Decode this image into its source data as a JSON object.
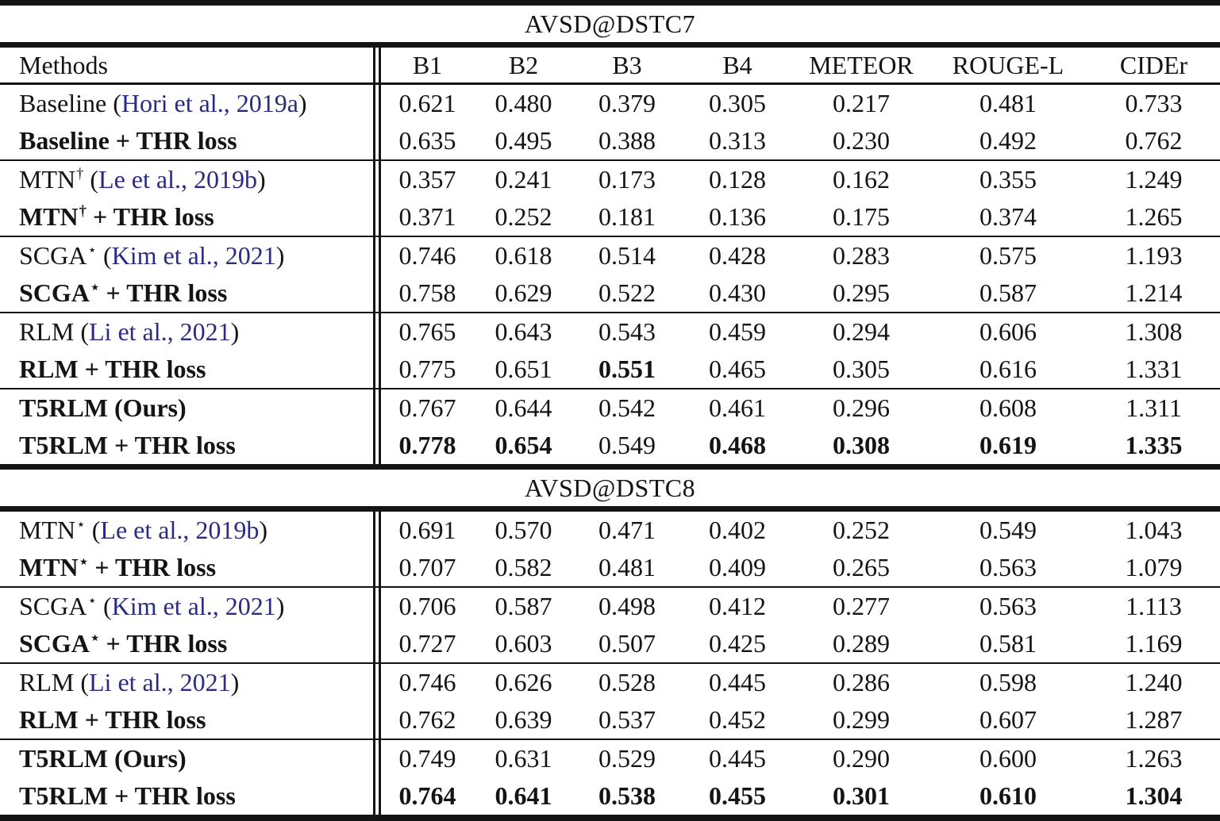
{
  "colors": {
    "citation_text": "#2b2b80",
    "body_text": "#141414",
    "rule": "#141414",
    "background": "#ffffff"
  },
  "table": {
    "header": {
      "methods_label": "Methods",
      "metrics": [
        "B1",
        "B2",
        "B3",
        "B4",
        "METEOR",
        "ROUGE-L",
        "CIDEr"
      ]
    },
    "sections": [
      {
        "title": "AVSD@DSTC7",
        "groups": [
          {
            "rows": [
              {
                "pre": "Baseline",
                "sup": "",
                "post": "",
                "cite": "Hori et al., 2019a",
                "bold": false,
                "values": [
                  "0.621",
                  "0.480",
                  "0.379",
                  "0.305",
                  "0.217",
                  "0.481",
                  "0.733"
                ],
                "vbold": [
                  false,
                  false,
                  false,
                  false,
                  false,
                  false,
                  false
                ]
              },
              {
                "pre": "Baseline",
                "sup": "",
                "post": " + THR loss",
                "cite": null,
                "bold": true,
                "values": [
                  "0.635",
                  "0.495",
                  "0.388",
                  "0.313",
                  "0.230",
                  "0.492",
                  "0.762"
                ],
                "vbold": [
                  false,
                  false,
                  false,
                  false,
                  false,
                  false,
                  false
                ]
              }
            ]
          },
          {
            "rows": [
              {
                "pre": "MTN",
                "sup": "†",
                "post": "",
                "cite": "Le et al., 2019b",
                "bold": false,
                "values": [
                  "0.357",
                  "0.241",
                  "0.173",
                  "0.128",
                  "0.162",
                  "0.355",
                  "1.249"
                ],
                "vbold": [
                  false,
                  false,
                  false,
                  false,
                  false,
                  false,
                  false
                ]
              },
              {
                "pre": "MTN",
                "sup": "†",
                "post": " + THR loss",
                "cite": null,
                "bold": true,
                "values": [
                  "0.371",
                  "0.252",
                  "0.181",
                  "0.136",
                  "0.175",
                  "0.374",
                  "1.265"
                ],
                "vbold": [
                  false,
                  false,
                  false,
                  false,
                  false,
                  false,
                  false
                ]
              }
            ]
          },
          {
            "rows": [
              {
                "pre": "SCGA",
                "sup": "⋆",
                "post": "",
                "cite": "Kim et al., 2021",
                "bold": false,
                "values": [
                  "0.746",
                  "0.618",
                  "0.514",
                  "0.428",
                  "0.283",
                  "0.575",
                  "1.193"
                ],
                "vbold": [
                  false,
                  false,
                  false,
                  false,
                  false,
                  false,
                  false
                ]
              },
              {
                "pre": "SCGA",
                "sup": "⋆",
                "post": " + THR loss",
                "cite": null,
                "bold": true,
                "values": [
                  "0.758",
                  "0.629",
                  "0.522",
                  "0.430",
                  "0.295",
                  "0.587",
                  "1.214"
                ],
                "vbold": [
                  false,
                  false,
                  false,
                  false,
                  false,
                  false,
                  false
                ]
              }
            ]
          },
          {
            "rows": [
              {
                "pre": "RLM",
                "sup": "",
                "post": "",
                "cite": "Li et al., 2021",
                "bold": false,
                "values": [
                  "0.765",
                  "0.643",
                  "0.543",
                  "0.459",
                  "0.294",
                  "0.606",
                  "1.308"
                ],
                "vbold": [
                  false,
                  false,
                  false,
                  false,
                  false,
                  false,
                  false
                ]
              },
              {
                "pre": "RLM",
                "sup": "",
                "post": " + THR loss",
                "cite": null,
                "bold": true,
                "values": [
                  "0.775",
                  "0.651",
                  "0.551",
                  "0.465",
                  "0.305",
                  "0.616",
                  "1.331"
                ],
                "vbold": [
                  false,
                  false,
                  true,
                  false,
                  false,
                  false,
                  false
                ]
              }
            ]
          },
          {
            "rows": [
              {
                "pre": "T5RLM",
                "sup": "",
                "post": " (Ours)",
                "cite": null,
                "bold": true,
                "values": [
                  "0.767",
                  "0.644",
                  "0.542",
                  "0.461",
                  "0.296",
                  "0.608",
                  "1.311"
                ],
                "vbold": [
                  false,
                  false,
                  false,
                  false,
                  false,
                  false,
                  false
                ]
              },
              {
                "pre": "T5RLM",
                "sup": "",
                "post": " + THR loss",
                "cite": null,
                "bold": true,
                "values": [
                  "0.778",
                  "0.654",
                  "0.549",
                  "0.468",
                  "0.308",
                  "0.619",
                  "1.335"
                ],
                "vbold": [
                  true,
                  true,
                  false,
                  true,
                  true,
                  true,
                  true
                ]
              }
            ]
          }
        ]
      },
      {
        "title": "AVSD@DSTC8",
        "groups": [
          {
            "rows": [
              {
                "pre": "MTN",
                "sup": "⋆",
                "post": "",
                "cite": "Le et al., 2019b",
                "bold": false,
                "values": [
                  "0.691",
                  "0.570",
                  "0.471",
                  "0.402",
                  "0.252",
                  "0.549",
                  "1.043"
                ],
                "vbold": [
                  false,
                  false,
                  false,
                  false,
                  false,
                  false,
                  false
                ]
              },
              {
                "pre": "MTN",
                "sup": "⋆",
                "post": " + THR loss",
                "cite": null,
                "bold": true,
                "values": [
                  "0.707",
                  "0.582",
                  "0.481",
                  "0.409",
                  "0.265",
                  "0.563",
                  "1.079"
                ],
                "vbold": [
                  false,
                  false,
                  false,
                  false,
                  false,
                  false,
                  false
                ]
              }
            ]
          },
          {
            "rows": [
              {
                "pre": "SCGA",
                "sup": "⋆",
                "post": "",
                "cite": "Kim et al., 2021",
                "bold": false,
                "values": [
                  "0.706",
                  "0.587",
                  "0.498",
                  "0.412",
                  "0.277",
                  "0.563",
                  "1.113"
                ],
                "vbold": [
                  false,
                  false,
                  false,
                  false,
                  false,
                  false,
                  false
                ]
              },
              {
                "pre": "SCGA",
                "sup": "⋆",
                "post": " + THR loss",
                "cite": null,
                "bold": true,
                "values": [
                  "0.727",
                  "0.603",
                  "0.507",
                  "0.425",
                  "0.289",
                  "0.581",
                  "1.169"
                ],
                "vbold": [
                  false,
                  false,
                  false,
                  false,
                  false,
                  false,
                  false
                ]
              }
            ]
          },
          {
            "rows": [
              {
                "pre": "RLM",
                "sup": "",
                "post": "",
                "cite": "Li et al., 2021",
                "bold": false,
                "values": [
                  "0.746",
                  "0.626",
                  "0.528",
                  "0.445",
                  "0.286",
                  "0.598",
                  "1.240"
                ],
                "vbold": [
                  false,
                  false,
                  false,
                  false,
                  false,
                  false,
                  false
                ]
              },
              {
                "pre": "RLM",
                "sup": "",
                "post": " + THR loss",
                "cite": null,
                "bold": true,
                "values": [
                  "0.762",
                  "0.639",
                  "0.537",
                  "0.452",
                  "0.299",
                  "0.607",
                  "1.287"
                ],
                "vbold": [
                  false,
                  false,
                  false,
                  false,
                  false,
                  false,
                  false
                ]
              }
            ]
          },
          {
            "rows": [
              {
                "pre": "T5RLM",
                "sup": "",
                "post": " (Ours)",
                "cite": null,
                "bold": true,
                "values": [
                  "0.749",
                  "0.631",
                  "0.529",
                  "0.445",
                  "0.290",
                  "0.600",
                  "1.263"
                ],
                "vbold": [
                  false,
                  false,
                  false,
                  false,
                  false,
                  false,
                  false
                ]
              },
              {
                "pre": "T5RLM",
                "sup": "",
                "post": " + THR loss",
                "cite": null,
                "bold": true,
                "values": [
                  "0.764",
                  "0.641",
                  "0.538",
                  "0.455",
                  "0.301",
                  "0.610",
                  "1.304"
                ],
                "vbold": [
                  true,
                  true,
                  true,
                  true,
                  true,
                  true,
                  true
                ]
              }
            ]
          }
        ]
      }
    ]
  }
}
